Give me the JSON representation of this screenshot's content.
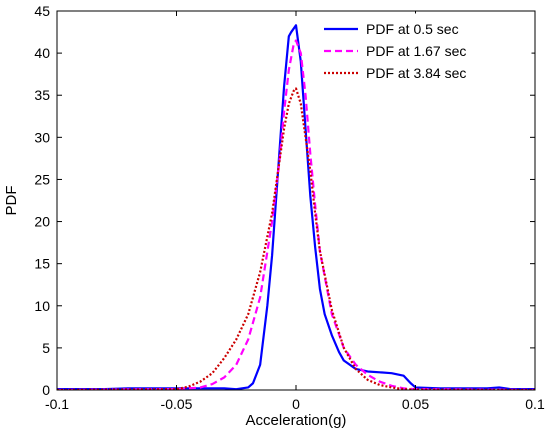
{
  "chart_data": {
    "type": "line",
    "title": "",
    "xlabel": "Acceleration(g)",
    "ylabel": "PDF",
    "xlim": [
      -0.1,
      0.1
    ],
    "ylim": [
      0,
      45
    ],
    "xticks": [
      -0.1,
      -0.05,
      0,
      0.05,
      0.1
    ],
    "xtick_labels": [
      "-0.1",
      "-0.05",
      "0",
      "0.05",
      "0.1"
    ],
    "yticks": [
      0,
      5,
      10,
      15,
      20,
      25,
      30,
      35,
      40,
      45
    ],
    "ytick_labels": [
      "0",
      "5",
      "10",
      "15",
      "20",
      "25",
      "30",
      "35",
      "40",
      "45"
    ],
    "grid": false,
    "legend_position": "top-right",
    "series": [
      {
        "name": "PDF at 0.5 sec",
        "color": "#0000ff",
        "style": "solid",
        "x": [
          -0.1,
          -0.08,
          -0.07,
          -0.05,
          -0.04,
          -0.03,
          -0.025,
          -0.02,
          -0.018,
          -0.015,
          -0.012,
          -0.01,
          -0.007,
          -0.005,
          -0.003,
          -0.002,
          0,
          0.002,
          0.004,
          0.006,
          0.008,
          0.01,
          0.012,
          0.015,
          0.018,
          0.02,
          0.025,
          0.03,
          0.035,
          0.04,
          0.045,
          0.048,
          0.05,
          0.06,
          0.08,
          0.085,
          0.09,
          0.1
        ],
        "y": [
          0.1,
          0.1,
          0.2,
          0.2,
          0.2,
          0.2,
          0.1,
          0.3,
          0.8,
          3,
          10,
          16,
          28,
          36,
          42,
          42.5,
          43.3,
          39,
          31,
          23,
          17,
          12,
          9,
          6.5,
          4.5,
          3.5,
          2.5,
          2.2,
          2.1,
          2.0,
          1.7,
          0.8,
          0.3,
          0.2,
          0.2,
          0.3,
          0.1,
          0.1
        ]
      },
      {
        "name": "PDF at 1.67 sec",
        "color": "#ff00ff",
        "style": "dashed",
        "x": [
          -0.1,
          -0.05,
          -0.04,
          -0.035,
          -0.03,
          -0.025,
          -0.02,
          -0.015,
          -0.01,
          -0.007,
          -0.005,
          -0.003,
          -0.001,
          0,
          0.002,
          0.004,
          0.006,
          0.008,
          0.01,
          0.015,
          0.02,
          0.025,
          0.03,
          0.035,
          0.04,
          0.045,
          0.05,
          0.1
        ],
        "y": [
          0,
          0.1,
          0.3,
          0.7,
          1.5,
          3,
          6,
          11,
          20,
          27,
          33,
          38,
          41,
          41.5,
          40,
          35,
          28,
          22,
          16.5,
          9,
          5,
          3,
          1.8,
          1,
          0.5,
          0.2,
          0.1,
          0
        ]
      },
      {
        "name": "PDF at 3.84 sec",
        "color": "#cc0000",
        "style": "dotted",
        "x": [
          -0.1,
          -0.05,
          -0.045,
          -0.04,
          -0.035,
          -0.03,
          -0.025,
          -0.02,
          -0.015,
          -0.01,
          -0.007,
          -0.005,
          -0.003,
          -0.001,
          0,
          0.002,
          0.004,
          0.006,
          0.008,
          0.01,
          0.015,
          0.02,
          0.025,
          0.03,
          0.035,
          0.04,
          0.045,
          0.05,
          0.1
        ],
        "y": [
          0,
          0.1,
          0.4,
          1,
          2,
          3.8,
          6,
          9,
          14,
          21,
          27,
          31,
          34,
          35.5,
          35.8,
          34,
          30,
          26,
          21,
          16.5,
          9.5,
          5,
          2.5,
          1.2,
          0.6,
          0.3,
          0.1,
          0.05,
          0
        ]
      }
    ]
  }
}
